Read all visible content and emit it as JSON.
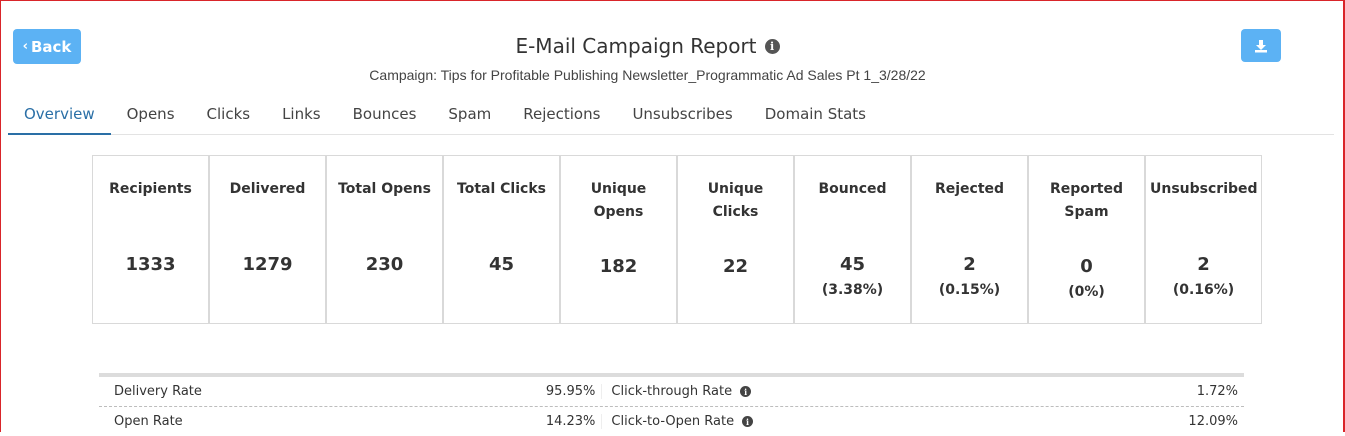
{
  "header": {
    "back_label": "Back",
    "title": "E-Mail Campaign Report",
    "subtitle": "Campaign: Tips for Profitable Publishing Newsletter_Programmatic Ad Sales Pt 1_3/28/22",
    "accent_color": "#5cb2f4",
    "download_icon": "download-icon",
    "info_icon": "info-icon"
  },
  "tabs": [
    {
      "label": "Overview",
      "active": true
    },
    {
      "label": "Opens"
    },
    {
      "label": "Clicks"
    },
    {
      "label": "Links"
    },
    {
      "label": "Bounces"
    },
    {
      "label": "Spam"
    },
    {
      "label": "Rejections"
    },
    {
      "label": "Unsubscribes"
    },
    {
      "label": "Domain Stats"
    }
  ],
  "stats": [
    {
      "label": "Recipients",
      "value": "1333"
    },
    {
      "label": "Delivered",
      "value": "1279"
    },
    {
      "label": "Total Opens",
      "value": "230"
    },
    {
      "label": "Total Clicks",
      "value": "45"
    },
    {
      "label": "Unique Opens",
      "value": "182"
    },
    {
      "label": "Unique Clicks",
      "value": "22"
    },
    {
      "label": "Bounced",
      "value": "45",
      "pct": "(3.38%)"
    },
    {
      "label": "Rejected",
      "value": "2",
      "pct": "(0.15%)"
    },
    {
      "label": "Reported Spam",
      "value": "0",
      "pct": "(0%)"
    },
    {
      "label": "Unsubscribed",
      "value": "2",
      "pct": "(0.16%)"
    }
  ],
  "rates": [
    {
      "left_label": "Delivery Rate",
      "left_value": "95.95%",
      "right_label": "Click-through Rate",
      "right_value": "1.72%"
    },
    {
      "left_label": "Open Rate",
      "left_value": "14.23%",
      "right_label": "Click-to-Open Rate",
      "right_value": "12.09%"
    }
  ]
}
